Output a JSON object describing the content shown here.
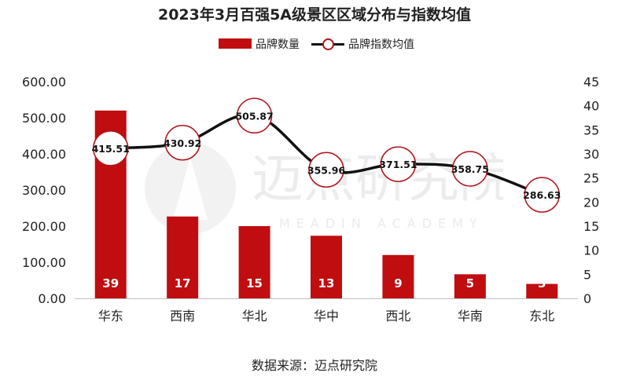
{
  "chart_data": {
    "type": "bar",
    "title": "2023年3月百强5A级景区区域分布与指数均值",
    "categories": [
      "华东",
      "西南",
      "华北",
      "华中",
      "西北",
      "华南",
      "东北"
    ],
    "series": [
      {
        "name": "品牌数量",
        "kind": "bar",
        "axis": "right",
        "values": [
          39,
          17,
          15,
          13,
          9,
          5,
          3
        ]
      },
      {
        "name": "品牌指数均值",
        "kind": "line",
        "axis": "left",
        "values": [
          415.51,
          430.92,
          505.87,
          355.96,
          371.51,
          358.75,
          286.63
        ]
      }
    ],
    "y_left": {
      "ylim": [
        0,
        600
      ],
      "ticks": [
        "0.00",
        "100.00",
        "200.00",
        "300.00",
        "400.00",
        "500.00",
        "600.00"
      ]
    },
    "y_right": {
      "ylim": [
        0,
        45
      ],
      "ticks": [
        "0",
        "5",
        "10",
        "15",
        "20",
        "25",
        "30",
        "35",
        "40",
        "45"
      ]
    },
    "bar_labels": [
      "39",
      "17",
      "15",
      "13",
      "9",
      "5",
      "3"
    ],
    "line_labels": [
      "415.51",
      "430.92",
      "505.87",
      "355.96",
      "371.51",
      "358.75",
      "286.63"
    ],
    "legend_position": "top-center",
    "grid": false
  },
  "colors": {
    "bar": "#c00d10",
    "line": "#111111",
    "marker_border": "#b01217"
  },
  "legend": {
    "bar_label": "品牌数量",
    "line_label": "品牌指数均值"
  },
  "source": "数据来源：迈点研究院",
  "watermark": {
    "text": "迈点研究院",
    "subtext": "MEADIN ACADEMY"
  }
}
